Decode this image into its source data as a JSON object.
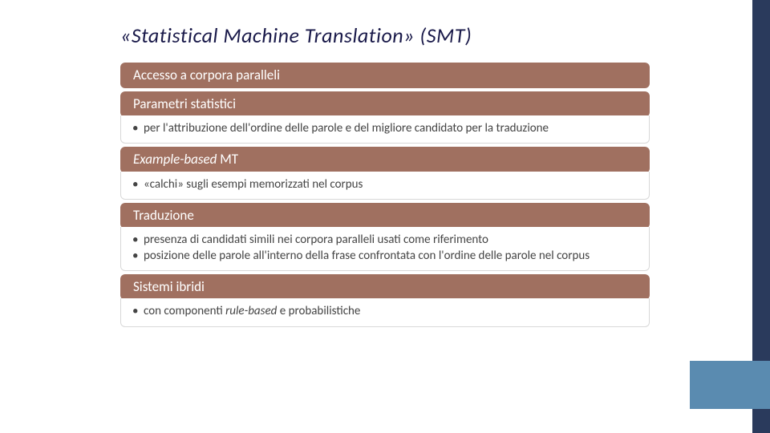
{
  "title": "«Statistical Machine Translation» (SMT)",
  "colors": {
    "header_bg": "#a07060",
    "header_text": "#ffffff",
    "panel_border": "#d8d8d8",
    "panel_bg": "#ffffff",
    "body_text": "#444444",
    "title_text": "#1a1a4a",
    "side_dark": "#2a3a5c",
    "side_light": "#5a8bb0"
  },
  "sections": [
    {
      "header_html": "Accesso a corpora paralleli",
      "bullets": []
    },
    {
      "header_html": "Parametri statistici",
      "bullets": [
        "per l'attribuzione dell'ordine delle parole e del migliore candidato per la traduzione"
      ]
    },
    {
      "header_html": "<span class=\"italic-part\">Example-based</span> MT",
      "bullets": [
        "«calchi» sugli esempi memorizzati nel corpus"
      ]
    },
    {
      "header_html": "Traduzione",
      "bullets": [
        "presenza di candidati simili nei corpora paralleli usati come riferimento",
        "posizione delle parole all'interno della frase confrontata con l'ordine delle parole nel corpus"
      ]
    },
    {
      "header_html": "Sistemi ibridi",
      "bullets": [
        "con componenti <em>rule-based</em> e probabilistiche"
      ]
    }
  ]
}
